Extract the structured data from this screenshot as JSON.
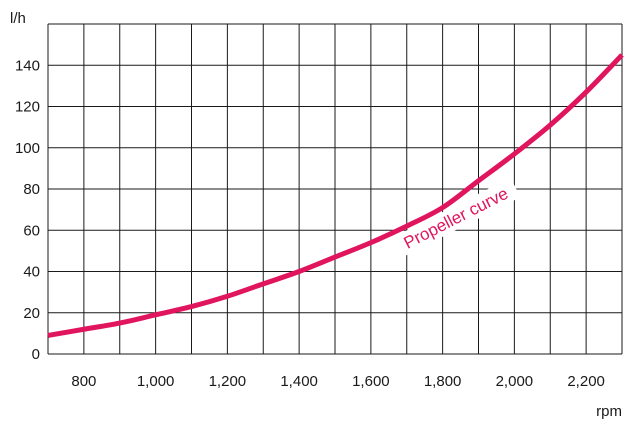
{
  "chart_data": {
    "type": "line",
    "title": "",
    "xlabel": "rpm",
    "ylabel": "l/h",
    "xlim": [
      700,
      2300
    ],
    "ylim": [
      0,
      160
    ],
    "x_ticks": [
      800,
      1000,
      1200,
      1400,
      1600,
      1800,
      2000,
      2200
    ],
    "x_tick_labels": [
      "800",
      "1,000",
      "1,200",
      "1,400",
      "1,600",
      "1,800",
      "2,000",
      "2,200"
    ],
    "y_ticks": [
      0,
      20,
      40,
      60,
      80,
      100,
      120,
      140
    ],
    "y_tick_labels": [
      "0",
      "20",
      "40",
      "60",
      "80",
      "100",
      "120",
      "140"
    ],
    "grid": true,
    "grid_x_step": 100,
    "grid_y_step": 20,
    "series": [
      {
        "name": "Propeller curve",
        "color": "#e0155d",
        "x": [
          700,
          800,
          900,
          1000,
          1100,
          1200,
          1300,
          1400,
          1500,
          1600,
          1700,
          1800,
          1900,
          2000,
          2100,
          2200,
          2300
        ],
        "y": [
          9,
          12,
          15,
          19,
          23,
          28,
          34,
          40,
          47,
          54,
          62,
          71,
          84,
          97,
          111,
          127,
          145
        ]
      }
    ],
    "annotations": [
      {
        "text": "Propeller curve",
        "series": 0,
        "at_x": 1820,
        "rotation_deg": -27
      }
    ]
  },
  "colors": {
    "grid": "#1a1a1a",
    "curve": "#e0155d",
    "background": "#ffffff"
  }
}
